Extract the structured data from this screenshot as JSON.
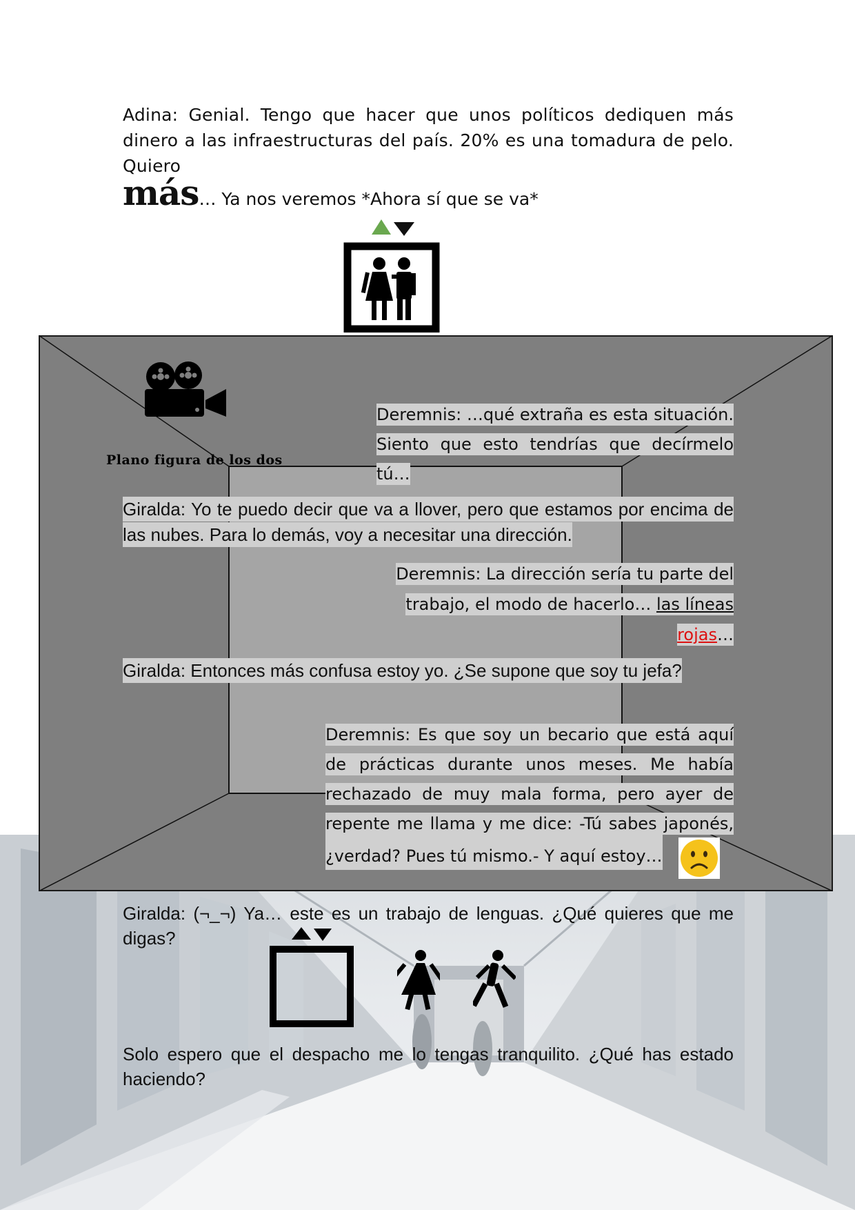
{
  "adina": {
    "text": "Adina: Genial. Tengo que hacer que unos políticos dediquen más dinero a las infraestructuras del país. 20% es una tomadura de pelo. Quiero",
    "mas_word": "más",
    "mas_rest": "… Ya nos veremos *Ahora sí que se va*"
  },
  "room": {
    "plano_label": "Plano figura de los dos"
  },
  "dialogue": {
    "deremnis_1": "Deremnis: …qué extraña es esta situación. Siento que esto tendrías que decírmelo tú…",
    "giralda_1": "Giralda: Yo te puedo decir que va a llover, pero que estamos por encima de las nubes. Para lo demás, voy a necesitar una dirección.",
    "deremnis_2_a": "Deremnis: La dirección sería tu parte del trabajo, el modo de hacerlo… ",
    "deremnis_2_link": "las líneas",
    "deremnis_2_red": "rojas",
    "deremnis_2_end": "…",
    "giralda_2": "Giralda: Entonces más confusa estoy yo. ¿Se supone que soy tu jefa?",
    "deremnis_3": "Deremnis: Es que soy un becario que está aquí de prácticas durante unos meses. Me había rechazado de muy mala forma, pero ayer de repente me llama y me dice: -Tú sabes japonés,",
    "deremnis_3_last": "¿verdad? Pues tú mismo.- Y aquí estoy…",
    "giralda_3": "Giralda: (¬_¬) Ya… este es un trabajo de lenguas. ¿Qué quieres que me digas?",
    "solo": "Solo espero que el despacho me lo tengas tranquilito. ¿Qué has estado haciendo?"
  },
  "icons": {
    "elevator_top": "elevator-couple-icon",
    "camera": "movie-camera-icon",
    "sad_face": "sad-face-icon",
    "elevator_empty": "empty-elevator-icon",
    "walking_woman": "walking-woman-icon",
    "walking_man": "walking-man-icon"
  },
  "colors": {
    "arrow_up": "#6aa84f",
    "arrow_down": "#111111",
    "room_gray": "#7f7f7f",
    "inner_gray": "#a5a5a5",
    "highlight": "#d0d0d0",
    "link_red": "#dd1111",
    "emoji_yellow": "#f5c21b"
  }
}
